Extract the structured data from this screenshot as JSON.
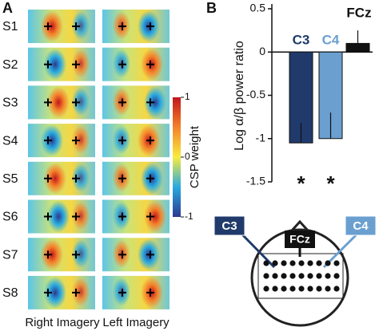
{
  "panel_labels": [
    "A",
    "B"
  ],
  "panel_a": {
    "subjects": [
      "S1",
      "S2",
      "S3",
      "S4",
      "S5",
      "S6",
      "S7",
      "S8"
    ],
    "columns": [
      "Right Imagery",
      "Left Imagery"
    ],
    "colorbar": {
      "label": "CSP weight",
      "lim": [
        -1,
        1
      ],
      "ticks": [
        1,
        0,
        -1
      ]
    }
  },
  "chart_data": {
    "type": "bar",
    "ylabel": "Log α/β power ratio",
    "categories": [
      "C3",
      "C4",
      "FCz"
    ],
    "values": [
      -1.05,
      -1.0,
      0.1
    ],
    "errors": [
      0.23,
      0.3,
      0.15
    ],
    "colors": [
      "#1f3a6b",
      "#6a9fd0",
      "#111111"
    ],
    "significance": [
      "*",
      "*",
      null
    ],
    "ylim": [
      -1.5,
      0.5
    ],
    "yticks": [
      0.5,
      0,
      -0.5,
      -1,
      -1.5
    ]
  },
  "head": {
    "labels": [
      "C3",
      "FCz",
      "C4"
    ]
  }
}
